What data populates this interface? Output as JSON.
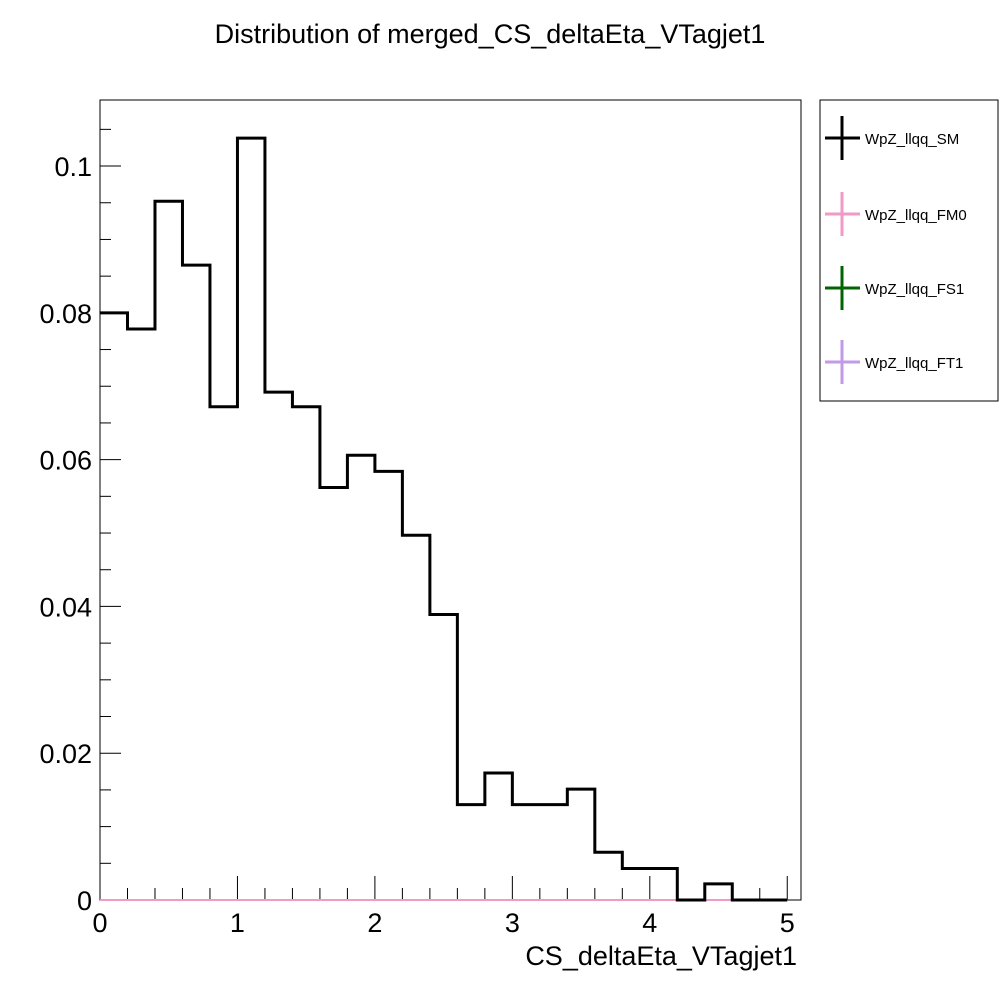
{
  "chart_data": {
    "type": "bar",
    "title": "Distribution of merged_CS_deltaEta_VTagjet1",
    "xlabel": "CS_deltaEta_VTagjet1",
    "ylabel": "",
    "xlim": [
      0,
      5.1
    ],
    "ylim": [
      0,
      0.109
    ],
    "bin_edges": [
      0,
      0.2,
      0.4,
      0.6,
      0.8,
      1.0,
      1.2,
      1.4,
      1.6,
      1.8,
      2.0,
      2.2,
      2.4,
      2.6,
      2.8,
      3.0,
      3.2,
      3.4,
      3.6,
      3.8,
      4.0,
      4.2,
      4.4,
      4.6,
      4.8,
      5.0
    ],
    "x_ticks": [
      {
        "value": 0,
        "label": "0"
      },
      {
        "value": 1,
        "label": "1"
      },
      {
        "value": 2,
        "label": "2"
      },
      {
        "value": 3,
        "label": "3"
      },
      {
        "value": 4,
        "label": "4"
      },
      {
        "value": 5,
        "label": "5"
      }
    ],
    "y_ticks": [
      {
        "value": 0,
        "label": "0"
      },
      {
        "value": 0.02,
        "label": "0.02"
      },
      {
        "value": 0.04,
        "label": "0.04"
      },
      {
        "value": 0.06,
        "label": "0.06"
      },
      {
        "value": 0.08,
        "label": "0.08"
      },
      {
        "value": 0.1,
        "label": "0.1"
      }
    ],
    "grid": false,
    "legend_position": "outside-right",
    "series": [
      {
        "name": "WpZ_llqq_SM",
        "color": "#000000",
        "values": [
          0.08,
          0.0778,
          0.0952,
          0.0865,
          0.0672,
          0.1038,
          0.0692,
          0.0672,
          0.0562,
          0.0606,
          0.0584,
          0.0497,
          0.0389,
          0.013,
          0.0173,
          0.013,
          0.013,
          0.0151,
          0.0065,
          0.0043,
          0.0043,
          0.0,
          0.0022,
          0.0,
          0.0
        ]
      },
      {
        "name": "WpZ_llqq_FM0",
        "color": "#f29ac6",
        "values": [
          0,
          0,
          0,
          0,
          0,
          0,
          0,
          0,
          0,
          0,
          0,
          0,
          0,
          0,
          0,
          0,
          0,
          0,
          0,
          0,
          0,
          0,
          0,
          0,
          0
        ]
      },
      {
        "name": "WpZ_llqq_FS1",
        "color": "#006400",
        "values": [
          0,
          0,
          0,
          0,
          0,
          0,
          0,
          0,
          0,
          0,
          0,
          0,
          0,
          0,
          0,
          0,
          0,
          0,
          0,
          0,
          0,
          0,
          0,
          0,
          0
        ]
      },
      {
        "name": "WpZ_llqq_FT1",
        "color": "#c39ae8",
        "values": [
          0,
          0,
          0,
          0,
          0,
          0,
          0,
          0,
          0,
          0,
          0,
          0,
          0,
          0,
          0,
          0,
          0,
          0,
          0,
          0,
          0,
          0,
          0,
          0,
          0
        ]
      }
    ]
  }
}
